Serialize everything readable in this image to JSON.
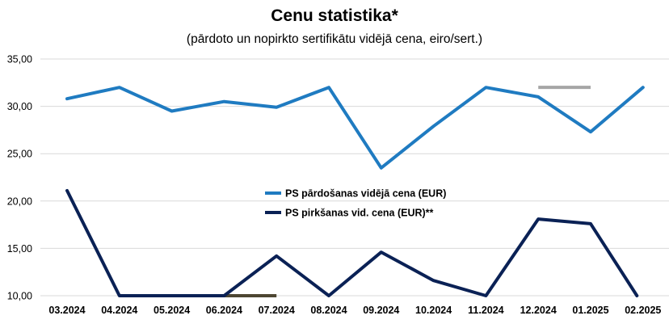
{
  "chart_data": {
    "type": "line",
    "title": "Cenu statistika*",
    "subtitle": "(pārdoto un nopirkto sertifikātu vidējā cena, eiro/sert.)",
    "xlabel": "",
    "ylabel": "",
    "categories": [
      "03.2024",
      "04.2024",
      "05.2024",
      "06.2024",
      "07.2024",
      "08.2024",
      "09.2024",
      "10.2024",
      "11.2024",
      "12.2024",
      "01.2025",
      "02.2025"
    ],
    "ylim": [
      10,
      35
    ],
    "yticks": [
      "10,00",
      "15,00",
      "20,00",
      "25,00",
      "30,00",
      "35,00"
    ],
    "ytick_values": [
      10,
      15,
      20,
      25,
      30,
      35
    ],
    "grid": true,
    "legend_position": "center",
    "series": [
      {
        "name": "PS pārdošanas vidējā cena (EUR)",
        "color": "#1f7bc1",
        "values": [
          30.8,
          32.0,
          29.5,
          30.5,
          29.9,
          32.0,
          23.5,
          27.9,
          32.0,
          31.0,
          27.3,
          32.0
        ]
      },
      {
        "name": "PS pirkšanas vid. cena (EUR)**",
        "color": "#0a2155",
        "values": [
          21.1,
          10.0,
          10.0,
          10.0,
          14.2,
          10.0,
          14.6,
          11.6,
          10.0,
          18.1,
          17.6,
          9.0
        ]
      }
    ],
    "annotations": [
      {
        "color": "#a6a6a6",
        "x_from": "12.2024",
        "x_to": "01.2025",
        "y": 32.0
      },
      {
        "color": "#4d4632",
        "x_from": "05.2024",
        "x_to": "07.2024",
        "y": 10.0
      }
    ]
  }
}
